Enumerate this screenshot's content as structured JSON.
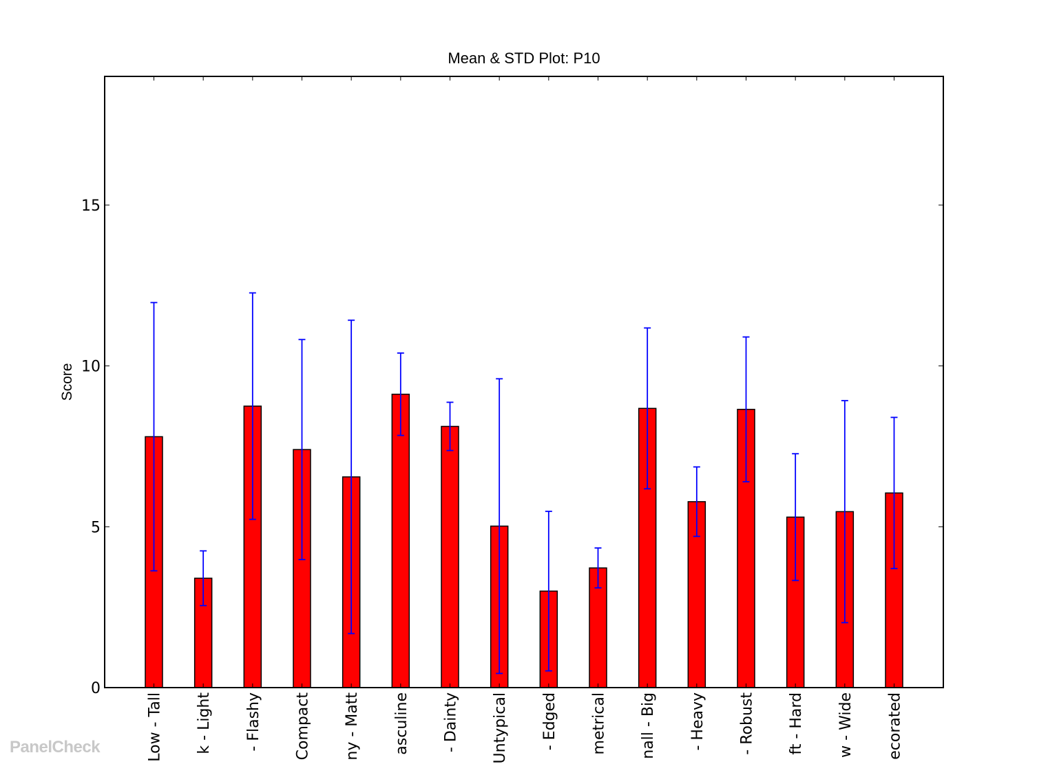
{
  "watermark": "PanelCheck",
  "chart_data": {
    "type": "bar",
    "title": "Mean & STD Plot: P10",
    "xlabel": "",
    "ylabel": "Score",
    "ylim": [
      0,
      19
    ],
    "yticks": [
      0,
      5,
      10,
      15
    ],
    "grid": false,
    "legend": "none",
    "bar_color": "#ff0000",
    "errorbar_color": "#0000ff",
    "categories": [
      "Low - Tall",
      "Dark - Light",
      "Discreet - Flashy",
      "Slim - Compact",
      "Shiny - Matt",
      "Feminine - Masculine",
      "Clumsy - Dainty",
      "Typical - Untypical",
      "Rounded - Edged",
      "Symmetrical - Asymmetrical",
      "Small - Big",
      "Light - Heavy",
      "Fragile - Robust",
      "Soft - Hard",
      "Narrow - Wide",
      "Plain - Decorated"
    ],
    "visible_labels": [
      "Low - Tall",
      "k - Light",
      "- Flashy",
      "Compact",
      "ny - Matt",
      "asculine",
      "- Dainty",
      "Untypical",
      "- Edged",
      "metrical",
      "nall - Big",
      "- Heavy",
      "- Robust",
      "ft - Hard",
      "w - Wide",
      "ecorated"
    ],
    "values": [
      7.8,
      3.4,
      8.75,
      7.4,
      6.55,
      9.12,
      8.12,
      5.02,
      3.0,
      3.72,
      8.68,
      5.78,
      8.65,
      5.3,
      5.47,
      6.05
    ],
    "std": [
      4.17,
      0.85,
      3.52,
      3.42,
      4.87,
      1.28,
      0.75,
      4.58,
      2.48,
      0.62,
      2.5,
      1.08,
      2.25,
      1.97,
      3.45,
      2.35
    ]
  }
}
